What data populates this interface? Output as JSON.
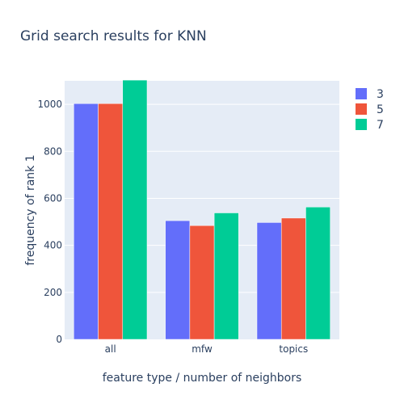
{
  "chart_data": {
    "type": "bar",
    "title": "Grid search results for KNN",
    "xlabel": "feature type / number of neighbors",
    "ylabel": "frequency of rank 1",
    "categories": [
      "all",
      "mfw",
      "topics"
    ],
    "series": [
      {
        "name": "3",
        "color": "#636efa",
        "values": [
          1003,
          505,
          497
        ]
      },
      {
        "name": "5",
        "color": "#ef553b",
        "values": [
          1003,
          484,
          516
        ]
      },
      {
        "name": "7",
        "color": "#00cc96",
        "values": [
          1103,
          538,
          563
        ]
      }
    ],
    "ylim": [
      0,
      1100
    ],
    "yticks": [
      0,
      200,
      400,
      600,
      800,
      1000
    ],
    "grid": true,
    "legend_position": "top-right",
    "barmode": "group"
  }
}
